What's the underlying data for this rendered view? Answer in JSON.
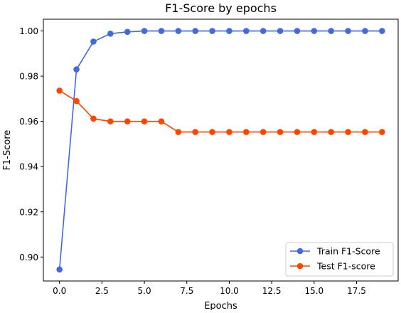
{
  "chart_data": {
    "type": "line",
    "title": "F1-Score by epochs",
    "xlabel": "Epochs",
    "ylabel": "F1-Score",
    "x": [
      0,
      1,
      2,
      3,
      4,
      5,
      6,
      7,
      8,
      9,
      10,
      11,
      12,
      13,
      14,
      15,
      16,
      17,
      18,
      19
    ],
    "xlim": [
      -0.95,
      19.95
    ],
    "ylim": [
      0.8894,
      1.0052
    ],
    "xticks": [
      0.0,
      2.5,
      5.0,
      7.5,
      10.0,
      12.5,
      15.0,
      17.5
    ],
    "xtick_labels": [
      "0.0",
      "2.5",
      "5.0",
      "7.5",
      "10.0",
      "12.5",
      "15.0",
      "17.5"
    ],
    "yticks": [
      0.9,
      0.92,
      0.94,
      0.96,
      0.98,
      1.0
    ],
    "ytick_labels": [
      "0.90",
      "0.92",
      "0.94",
      "0.96",
      "0.98",
      "1.00"
    ],
    "grid": false,
    "legend_position": "lower right",
    "series": [
      {
        "name": "Train F1-Score",
        "color": "#4169e1",
        "marker": "circle",
        "values": [
          0.8945,
          0.983,
          0.9953,
          0.9988,
          0.9996,
          1.0,
          1.0,
          1.0,
          1.0,
          1.0,
          1.0,
          1.0,
          1.0,
          1.0,
          1.0,
          1.0,
          1.0,
          1.0,
          1.0,
          1.0
        ]
      },
      {
        "name": "Test F1-score",
        "color": "#ff4500",
        "marker": "circle",
        "values": [
          0.9736,
          0.969,
          0.9612,
          0.96,
          0.96,
          0.96,
          0.96,
          0.9553,
          0.9553,
          0.9553,
          0.9553,
          0.9553,
          0.9553,
          0.9553,
          0.9553,
          0.9553,
          0.9553,
          0.9553,
          0.9553,
          0.9553
        ]
      }
    ]
  }
}
